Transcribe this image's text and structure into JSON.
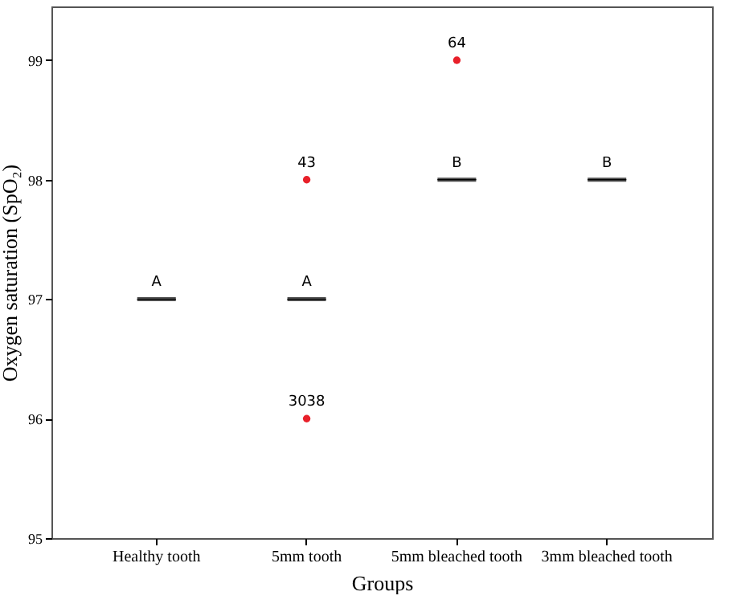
{
  "chart_data": {
    "type": "box",
    "xlabel": "Groups",
    "ylabel": "Oxygen saturation (SpO₂)",
    "categories": [
      "Healthy tooth",
      "5mm tooth",
      "5mm bleached tooth",
      "3mm bleached tooth"
    ],
    "series": [
      {
        "color": "#000000",
        "boxes": [
          {
            "low": 97,
            "q1": 97,
            "median": 97,
            "q3": 97,
            "high": 97
          },
          {
            "low": 97,
            "q1": 97,
            "median": 97,
            "q3": 97,
            "high": 97
          },
          {
            "low": 98,
            "q1": 98,
            "median": 98,
            "q3": 98,
            "high": 98
          },
          {
            "low": 98,
            "q1": 98,
            "median": 98,
            "q3": 98,
            "high": 98
          }
        ]
      },
      {
        "type": "scatter",
        "color": "#e8202a",
        "x": [
          "5mm tooth",
          "5mm tooth",
          "5mm bleached tooth"
        ],
        "values": [
          98,
          96,
          99
        ]
      }
    ],
    "ylim": [
      95,
      99.45
    ],
    "yticks": [
      95,
      96,
      97,
      98,
      99
    ],
    "grid": false,
    "annotations": [
      {
        "text": "A",
        "x": "Healthy tooth",
        "y": 97
      },
      {
        "text": "A",
        "x": "5mm tooth",
        "y": 97
      },
      {
        "text": "43",
        "x": "5mm tooth",
        "y": 98
      },
      {
        "text": "3038",
        "x": "5mm tooth",
        "y": 96
      },
      {
        "text": "B",
        "x": "5mm bleached tooth",
        "y": 98
      },
      {
        "text": "64",
        "x": "5mm bleached tooth",
        "y": 99
      },
      {
        "text": "B",
        "x": "3mm bleached tooth",
        "y": 98
      }
    ]
  }
}
